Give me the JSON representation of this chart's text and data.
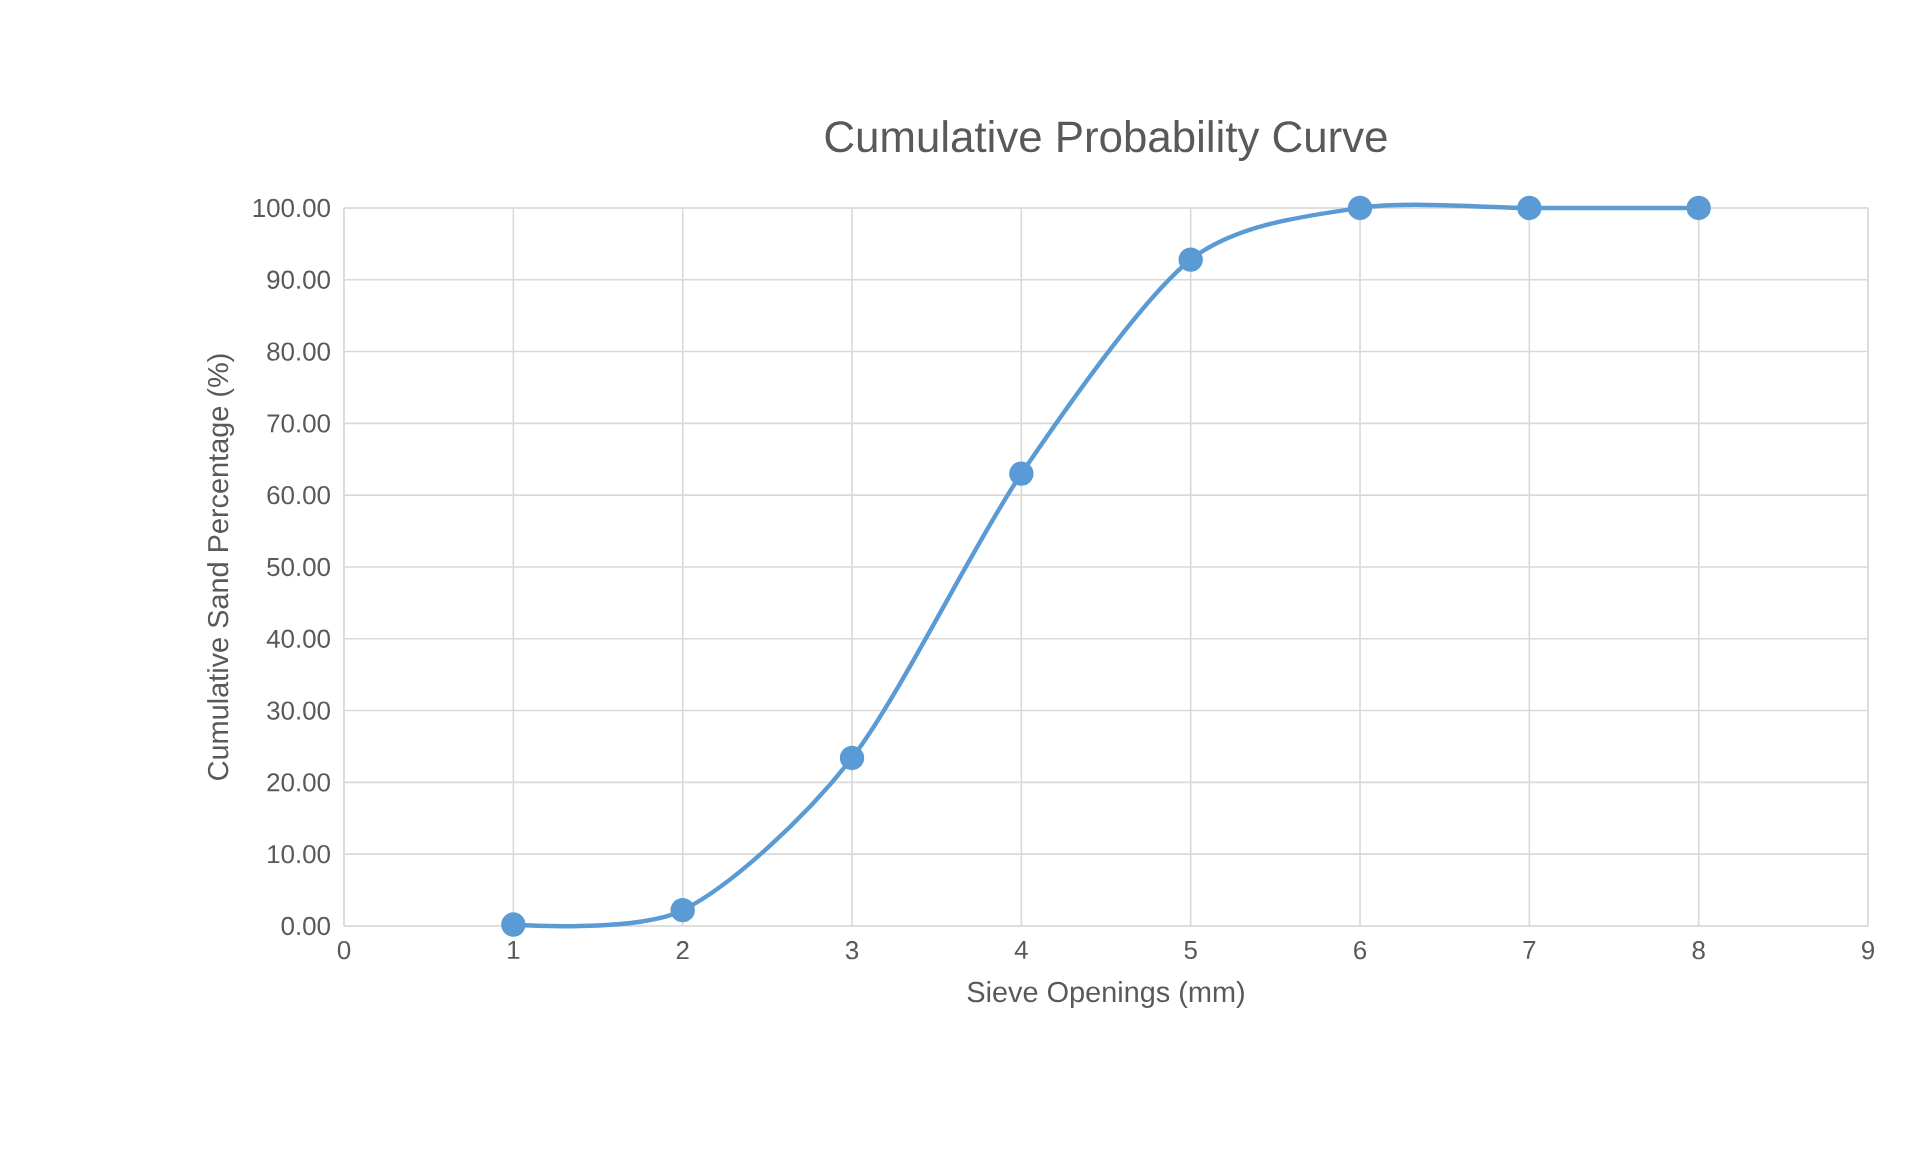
{
  "chart_data": {
    "type": "line",
    "title": "Cumulative Probability Curve",
    "xlabel": "Sieve Openings (mm)",
    "ylabel": "Cumulative Sand Percentage (%)",
    "x": [
      1,
      2,
      3,
      4,
      5,
      6,
      7,
      8
    ],
    "series": [
      {
        "color": "#5b9bd5",
        "values": [
          0.2,
          2.2,
          23.4,
          63.0,
          92.8,
          100,
          100,
          100
        ]
      }
    ],
    "xlim": [
      0,
      9
    ],
    "xticks": [
      0,
      1,
      2,
      3,
      4,
      5,
      6,
      7,
      8,
      9
    ],
    "ylim": [
      0,
      100
    ],
    "yticks": [
      {
        "value": 0,
        "label": "0.00"
      },
      {
        "value": 10,
        "label": "10.00"
      },
      {
        "value": 20,
        "label": "20.00"
      },
      {
        "value": 30,
        "label": "30.00"
      },
      {
        "value": 40,
        "label": "40.00"
      },
      {
        "value": 50,
        "label": "50.00"
      },
      {
        "value": 60,
        "label": "60.00"
      },
      {
        "value": 70,
        "label": "70.00"
      },
      {
        "value": 80,
        "label": "80.00"
      },
      {
        "value": 90,
        "label": "90.00"
      },
      {
        "value": 100,
        "label": "100.00"
      }
    ],
    "grid": true,
    "marker": "circle",
    "line_style": "solid"
  }
}
